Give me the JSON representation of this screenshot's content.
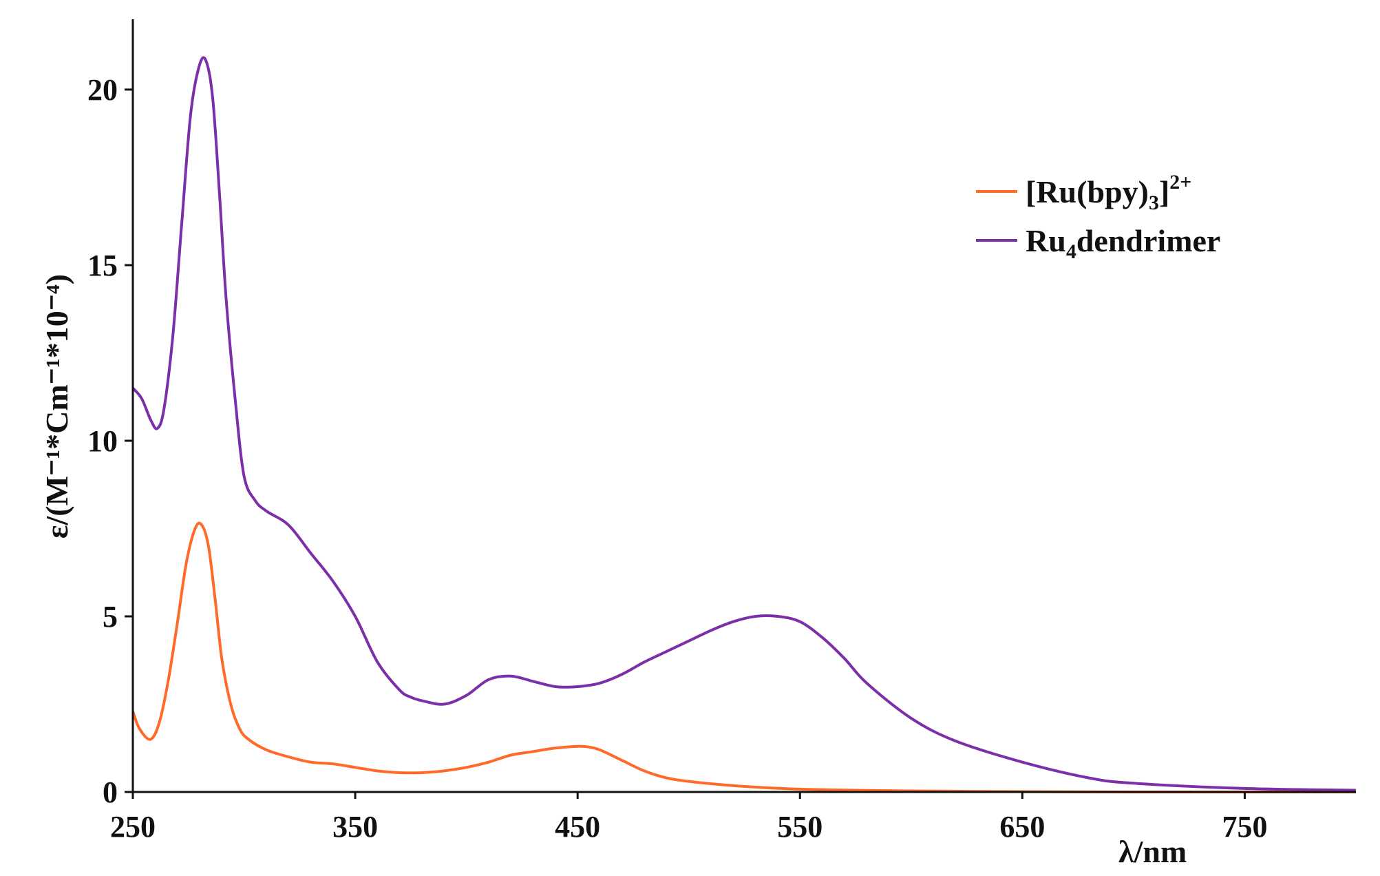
{
  "chart_data": {
    "type": "line",
    "title": "",
    "xlabel": "λ/nm",
    "ylabel": "ε/(M⁻¹*Cm⁻¹*10⁻⁴)",
    "xlim": [
      250,
      800
    ],
    "ylim": [
      0,
      22
    ],
    "xticks": [
      250,
      350,
      450,
      550,
      650,
      750
    ],
    "yticks": [
      0,
      5,
      10,
      15,
      20
    ],
    "grid": false,
    "legend_position": "top-right",
    "series": [
      {
        "name": "[Ru(bpy)3]2+",
        "color": "#ff6a2b",
        "x": [
          250,
          253,
          258,
          262,
          266,
          270,
          274,
          278,
          281,
          284,
          287,
          290,
          294,
          298,
          302,
          310,
          320,
          330,
          340,
          350,
          360,
          370,
          380,
          390,
          400,
          410,
          420,
          430,
          440,
          450,
          455,
          460,
          470,
          480,
          490,
          500,
          520,
          550,
          600,
          650,
          700,
          750,
          800
        ],
        "y": [
          2.3,
          1.8,
          1.5,
          2.0,
          3.2,
          4.8,
          6.5,
          7.5,
          7.6,
          7.0,
          5.5,
          3.8,
          2.5,
          1.8,
          1.5,
          1.2,
          1.0,
          0.85,
          0.8,
          0.7,
          0.6,
          0.55,
          0.55,
          0.6,
          0.7,
          0.85,
          1.05,
          1.15,
          1.25,
          1.3,
          1.28,
          1.2,
          0.9,
          0.6,
          0.4,
          0.3,
          0.18,
          0.08,
          0.03,
          0.01,
          0.0,
          0.0,
          0.0
        ]
      },
      {
        "name": "Ru4dendrimer",
        "color": "#7b2fa8",
        "x": [
          250,
          254,
          258,
          261,
          264,
          268,
          272,
          276,
          280,
          283,
          286,
          289,
          292,
          296,
          300,
          305,
          310,
          320,
          330,
          340,
          350,
          360,
          370,
          375,
          380,
          390,
          400,
          410,
          420,
          430,
          440,
          450,
          460,
          470,
          480,
          490,
          500,
          510,
          520,
          530,
          540,
          550,
          560,
          570,
          580,
          600,
          620,
          650,
          680,
          700,
          750,
          800
        ],
        "y": [
          11.5,
          11.2,
          10.6,
          10.35,
          10.9,
          13.0,
          16.2,
          19.3,
          20.7,
          20.8,
          19.7,
          17.0,
          14.0,
          11.2,
          9.0,
          8.3,
          8.0,
          7.6,
          6.8,
          6.0,
          5.0,
          3.7,
          2.9,
          2.7,
          2.6,
          2.5,
          2.75,
          3.2,
          3.3,
          3.15,
          3.0,
          3.0,
          3.1,
          3.35,
          3.7,
          4.0,
          4.3,
          4.6,
          4.85,
          5.0,
          5.0,
          4.85,
          4.4,
          3.8,
          3.1,
          2.1,
          1.45,
          0.85,
          0.4,
          0.25,
          0.1,
          0.05
        ]
      }
    ]
  },
  "legend": {
    "entries": [
      {
        "main": "[Ru(bpy)",
        "sub": "3",
        "tail": "]",
        "sup": "2+"
      },
      {
        "main": "Ru",
        "sub": "4",
        "tail": "dendrimer",
        "sup": ""
      }
    ]
  }
}
